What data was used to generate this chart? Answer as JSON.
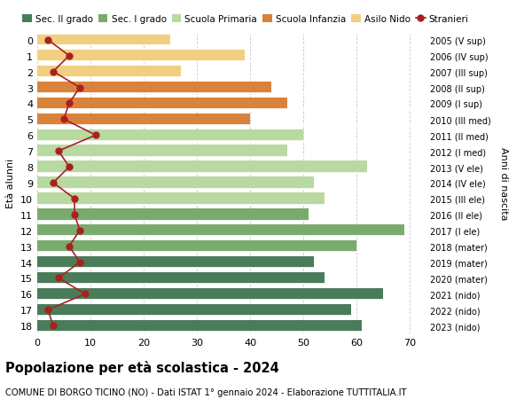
{
  "ages": [
    18,
    17,
    16,
    15,
    14,
    13,
    12,
    11,
    10,
    9,
    8,
    7,
    6,
    5,
    4,
    3,
    2,
    1,
    0
  ],
  "years": [
    "2005 (V sup)",
    "2006 (IV sup)",
    "2007 (III sup)",
    "2008 (II sup)",
    "2009 (I sup)",
    "2010 (III med)",
    "2011 (II med)",
    "2012 (I med)",
    "2013 (V ele)",
    "2014 (IV ele)",
    "2015 (III ele)",
    "2016 (II ele)",
    "2017 (I ele)",
    "2018 (mater)",
    "2019 (mater)",
    "2020 (mater)",
    "2021 (nido)",
    "2022 (nido)",
    "2023 (nido)"
  ],
  "bar_values": [
    61,
    59,
    65,
    54,
    52,
    60,
    69,
    51,
    54,
    52,
    62,
    47,
    50,
    40,
    47,
    44,
    27,
    39,
    25
  ],
  "bar_colors": [
    "#4a7c59",
    "#4a7c59",
    "#4a7c59",
    "#4a7c59",
    "#4a7c59",
    "#7aab6e",
    "#7aab6e",
    "#7aab6e",
    "#b8d9a0",
    "#b8d9a0",
    "#b8d9a0",
    "#b8d9a0",
    "#b8d9a0",
    "#d9823c",
    "#d9823c",
    "#d9823c",
    "#f0d080",
    "#f0d080",
    "#f0d080"
  ],
  "stranieri_values": [
    3,
    2,
    9,
    4,
    8,
    6,
    8,
    7,
    7,
    3,
    6,
    4,
    11,
    5,
    6,
    8,
    3,
    6,
    2
  ],
  "stranieri_color": "#aa2020",
  "legend_labels": [
    "Sec. II grado",
    "Sec. I grado",
    "Scuola Primaria",
    "Scuola Infanzia",
    "Asilo Nido",
    "Stranieri"
  ],
  "legend_colors": [
    "#4a7c59",
    "#7aab6e",
    "#b8d9a0",
    "#d9823c",
    "#f0d080",
    "#aa2020"
  ],
  "title": "Popolazione per età scolastica - 2024",
  "subtitle": "COMUNE DI BORGO TICINO (NO) - Dati ISTAT 1° gennaio 2024 - Elaborazione TUTTITALIA.IT",
  "ylabel_left": "Età alunni",
  "ylabel_right": "Anni di nascita",
  "xlim": [
    0,
    73
  ],
  "background_color": "#ffffff",
  "grid_color": "#c8c8c8"
}
